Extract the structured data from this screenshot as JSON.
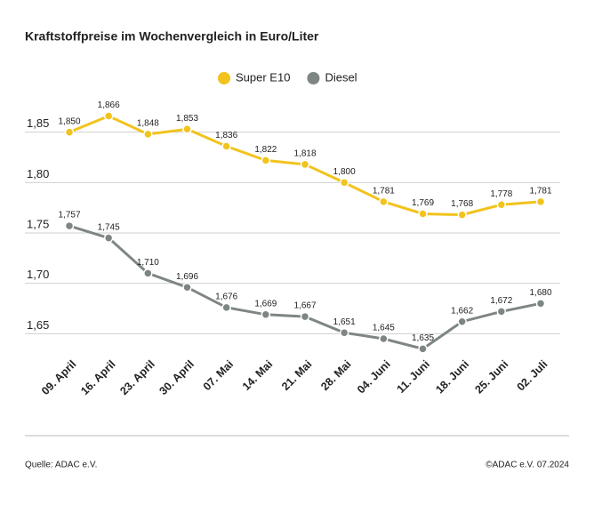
{
  "chart_data": {
    "type": "line",
    "title": "Kraftstoffpreise im Wochenvergleich in Euro/Liter",
    "categories": [
      "09. April",
      "16. April",
      "23. April",
      "30. April",
      "07. Mai",
      "14. Mai",
      "21. Mai",
      "28. Mai",
      "04. Juni",
      "11. Juni",
      "18. Juni",
      "25. Juni",
      "02. Juli"
    ],
    "series": [
      {
        "name": "Super E10",
        "color": "#f2c31c",
        "values": [
          1.85,
          1.866,
          1.848,
          1.853,
          1.836,
          1.822,
          1.818,
          1.8,
          1.781,
          1.769,
          1.768,
          1.778,
          1.781
        ],
        "value_labels": [
          "1,850",
          "1,866",
          "1,848",
          "1,853",
          "1,836",
          "1,822",
          "1,818",
          "1,800",
          "1,781",
          "1,769",
          "1,768",
          "1,778",
          "1,781"
        ]
      },
      {
        "name": "Diesel",
        "color": "#7e8683",
        "values": [
          1.757,
          1.745,
          1.71,
          1.696,
          1.676,
          1.669,
          1.667,
          1.651,
          1.645,
          1.635,
          1.662,
          1.672,
          1.68
        ],
        "value_labels": [
          "1,757",
          "1,745",
          "1,710",
          "1,696",
          "1,676",
          "1,669",
          "1,667",
          "1,651",
          "1,645",
          "1,635",
          "1,662",
          "1,672",
          "1,680"
        ]
      }
    ],
    "ylim": [
      1.63,
      1.87
    ],
    "yticks": [
      {
        "value": 1.65,
        "label": "1,65"
      },
      {
        "value": 1.7,
        "label": "1,70"
      },
      {
        "value": 1.75,
        "label": "1,75"
      },
      {
        "value": 1.8,
        "label": "1,80"
      },
      {
        "value": 1.85,
        "label": "1,85"
      }
    ],
    "grid": true,
    "legend": "top",
    "source": "Quelle: ADAC e.V.",
    "credit": "©ADAC e.V. 07.2024"
  }
}
